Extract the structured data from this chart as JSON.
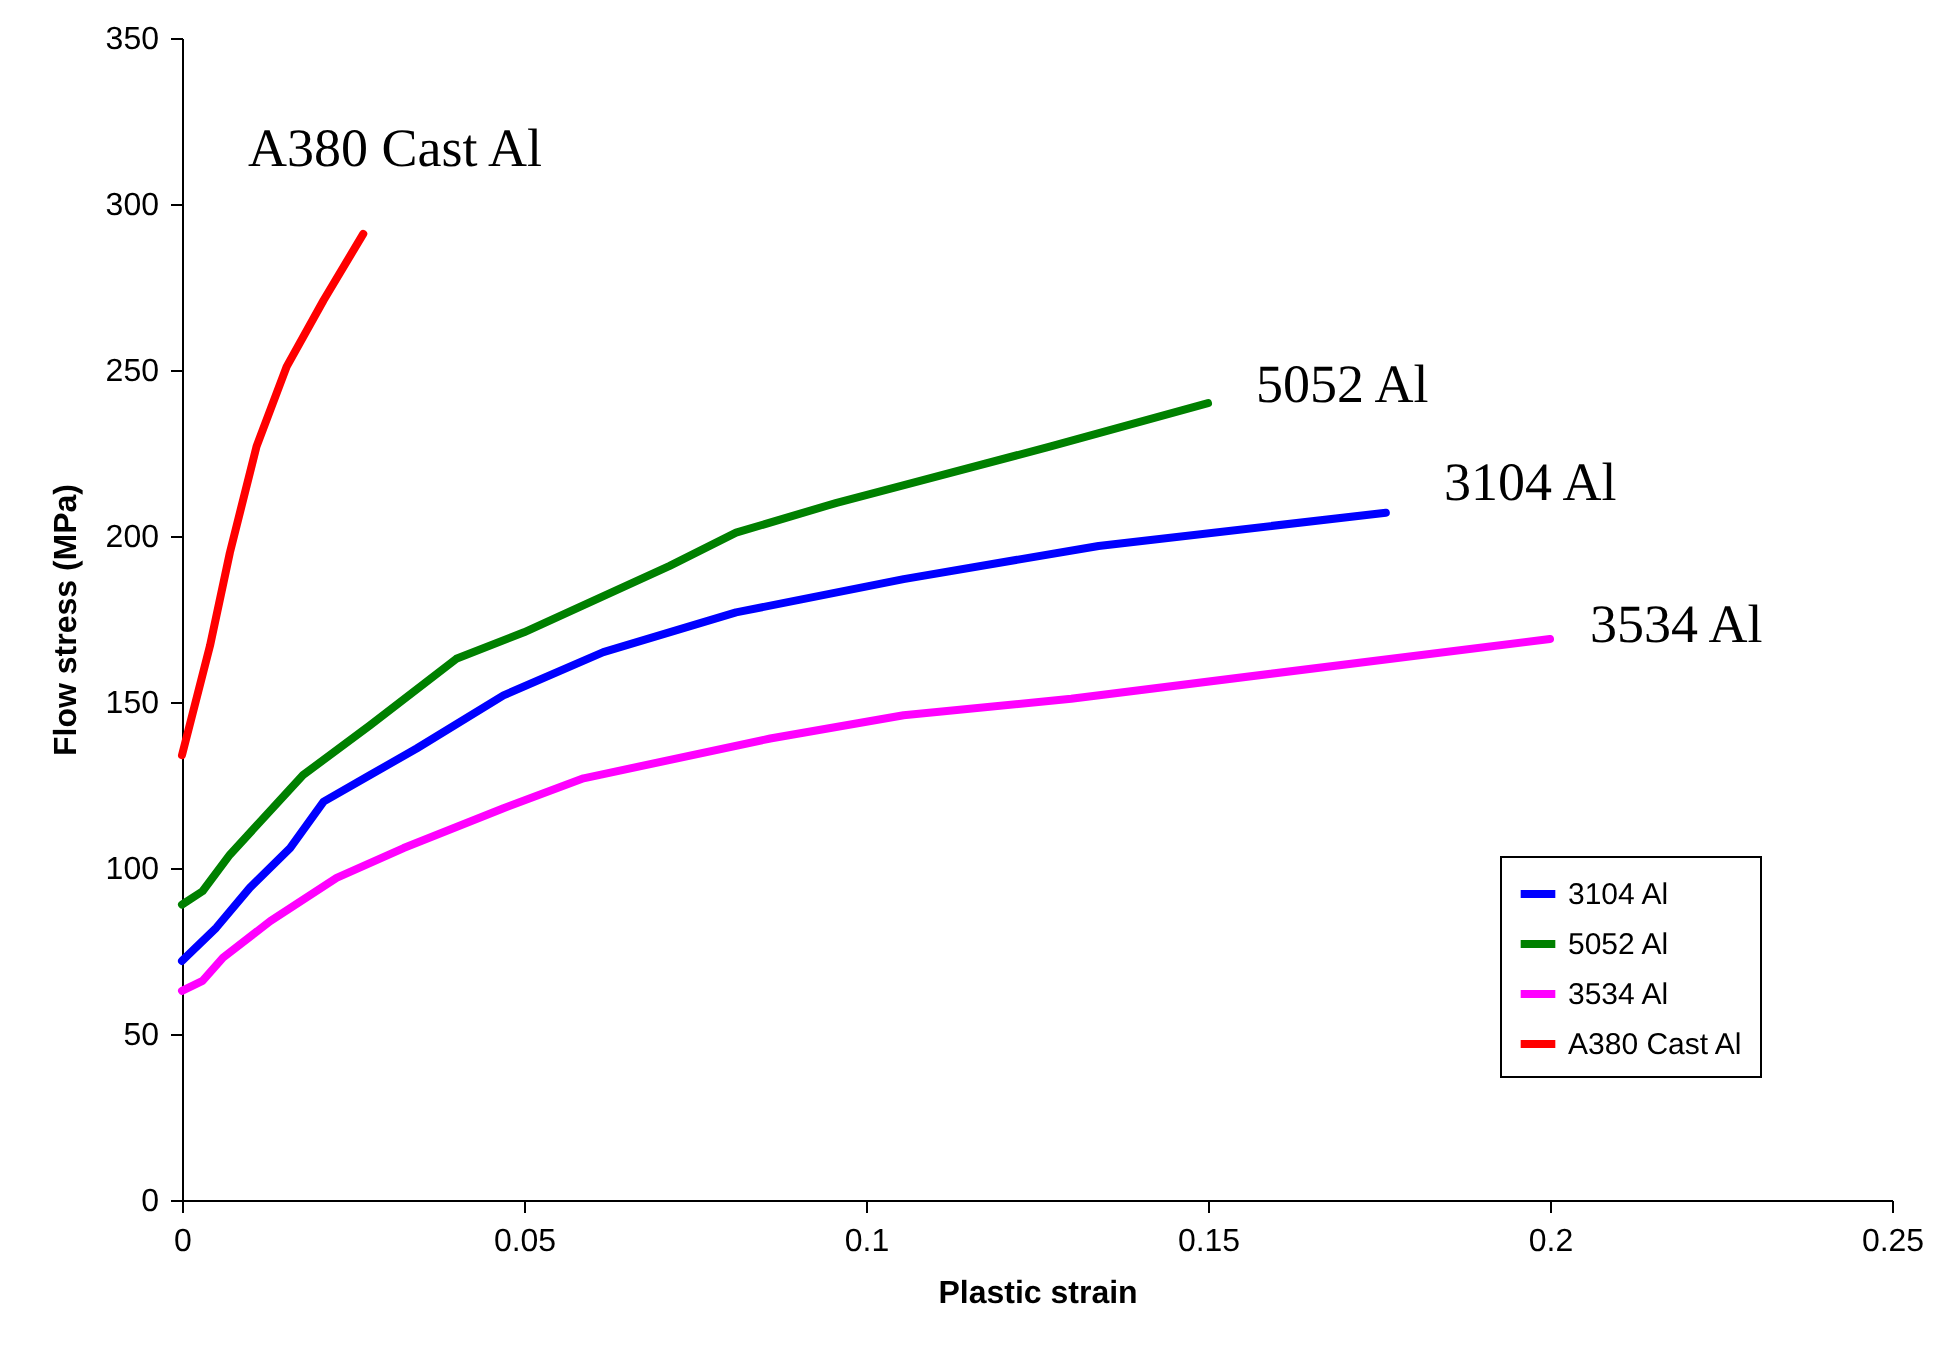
{
  "chart_data": {
    "type": "line",
    "xlabel": "Plastic strain",
    "ylabel": "Flow stress (MPa)",
    "xlim": [
      0,
      0.25
    ],
    "xticks": [
      0,
      0.05,
      0.1,
      0.15,
      0.2,
      0.25
    ],
    "ylim": [
      0,
      350
    ],
    "yticks": [
      0,
      50,
      100,
      150,
      200,
      250,
      300,
      350
    ],
    "grid": false,
    "legend": "bottom right",
    "marker": "none",
    "line_style": "solid",
    "series": [
      {
        "name": "3104 Al",
        "color": "#0000ff",
        "x": [
          0,
          0.005,
          0.0099,
          0.0158,
          0.0207,
          0.0275,
          0.0343,
          0.047,
          0.0616,
          0.081,
          0.1055,
          0.134,
          0.176
        ],
        "values": [
          72,
          82,
          94,
          106,
          120,
          128,
          136,
          152,
          165,
          177,
          187,
          197,
          207
        ]
      },
      {
        "name": "5052 Al",
        "color": "#008000",
        "x": [
          0,
          0.003,
          0.007,
          0.0177,
          0.0275,
          0.0401,
          0.05,
          0.0713,
          0.081,
          0.0957,
          0.105,
          0.127,
          0.15
        ],
        "values": [
          89,
          93,
          104,
          128,
          143,
          163,
          171,
          191,
          201,
          210,
          215,
          227,
          240
        ]
      },
      {
        "name": "3534 Al",
        "color": "#ff00ff",
        "x": [
          0,
          0.003,
          0.006,
          0.0129,
          0.0226,
          0.0324,
          0.047,
          0.0587,
          0.086,
          0.1055,
          0.13,
          0.2
        ],
        "values": [
          63,
          66,
          73,
          84,
          97,
          106,
          118,
          127,
          139,
          146,
          151,
          169
        ]
      },
      {
        "name": "A380 Cast Al",
        "color": "#ff0000",
        "x": [
          0,
          0.0041,
          0.007,
          0.0109,
          0.0153,
          0.0207,
          0.0265
        ],
        "values": [
          134,
          167,
          195,
          227,
          251,
          271,
          291
        ]
      }
    ],
    "annotations": [
      "A380 Cast Al",
      "5052 Al",
      "3104 Al",
      "3534 Al"
    ]
  }
}
